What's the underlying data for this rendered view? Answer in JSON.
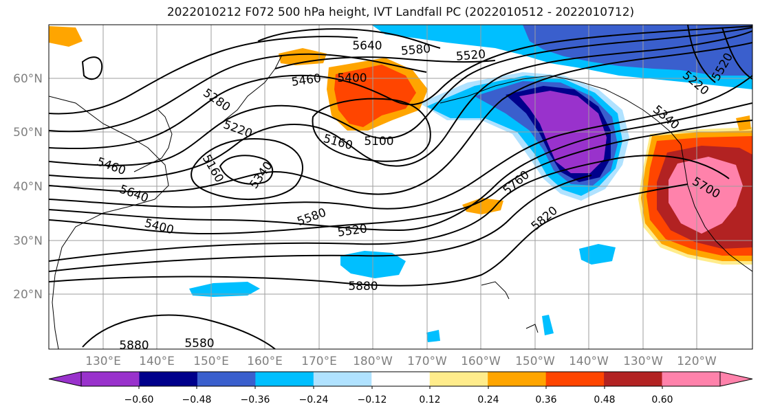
{
  "title": "2022010212 F072 500 hPa height, IVT Landfall PC (2022010512 - 2022010712)",
  "lat_labels": [
    "60°N",
    "50°N",
    "40°N",
    "30°N",
    "20°N"
  ],
  "lon_labels": [
    "130°E",
    "140°E",
    "150°E",
    "160°E",
    "170°E",
    "180°W",
    "170°W",
    "160°W",
    "150°W",
    "140°W",
    "130°W",
    "120°W"
  ],
  "contour_labels": [
    "5640",
    "5580",
    "5520",
    "5460",
    "5400",
    "5280",
    "5220",
    "5160",
    "5100",
    "5340",
    "5460",
    "5640",
    "5400",
    "5580",
    "5520",
    "5760",
    "5820",
    "5880",
    "5880",
    "5580",
    "5220",
    "5160",
    "5700",
    "5520",
    "5340"
  ],
  "colorbar": {
    "ticks": [
      "−0.60",
      "−0.48",
      "−0.36",
      "−0.24",
      "−0.12",
      "0.12",
      "0.24",
      "0.36",
      "0.48",
      "0.60"
    ],
    "colors": [
      "#9932cc",
      "#00008b",
      "#3a5fcd",
      "#00bfff",
      "#b0e2ff",
      "#ffffff",
      "#ffec8b",
      "#ffa500",
      "#ff4500",
      "#b22222",
      "#ff82ab",
      "#ff82ab"
    ]
  }
}
